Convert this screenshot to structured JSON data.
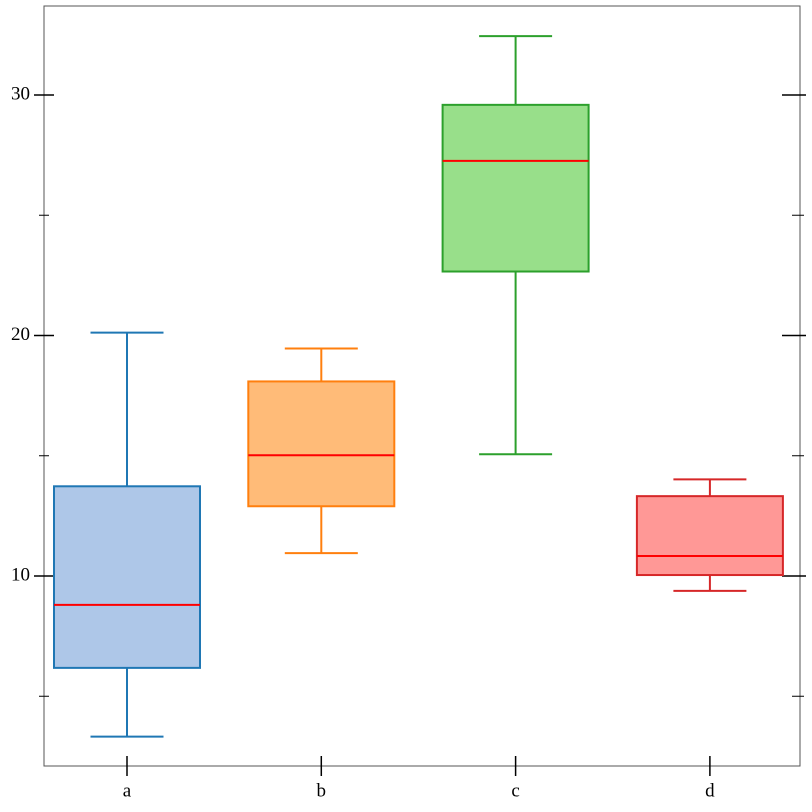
{
  "chart_data": {
    "type": "box",
    "categories": [
      "a",
      "b",
      "c",
      "d"
    ],
    "boxes": [
      {
        "whislo": 3.32,
        "q1": 6.18,
        "med": 8.8,
        "q3": 13.73,
        "whishi": 20.12
      },
      {
        "whislo": 10.95,
        "q1": 12.9,
        "med": 15.02,
        "q3": 18.09,
        "whishi": 19.46
      },
      {
        "whislo": 15.06,
        "q1": 22.66,
        "med": 27.26,
        "q3": 29.59,
        "whishi": 32.45
      },
      {
        "whislo": 9.38,
        "q1": 10.04,
        "med": 10.83,
        "q3": 13.32,
        "whishi": 14.02
      }
    ],
    "fill_colors": [
      "#aec7e8",
      "#ffbb78",
      "#98df8a",
      "#ff9896"
    ],
    "edge_colors": [
      "#1f77b4",
      "#ff7f0e",
      "#2ca02c",
      "#d62728"
    ],
    "median_color": "#ff0000",
    "ylim": [
      2.1,
      33.7
    ],
    "yticks": [
      10,
      20,
      30
    ],
    "minor_yticks": [
      5,
      15,
      25
    ]
  }
}
